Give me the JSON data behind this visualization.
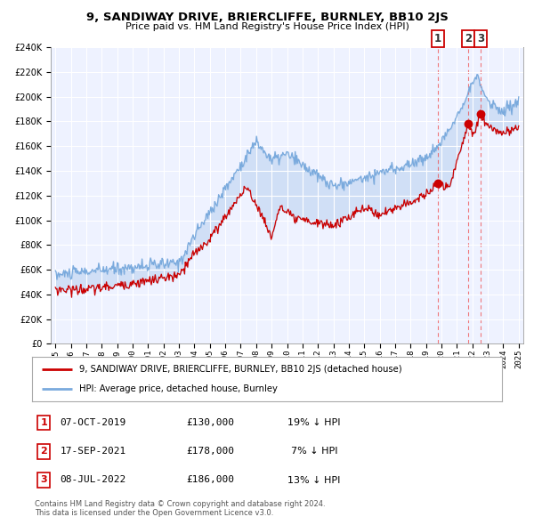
{
  "title": "9, SANDIWAY DRIVE, BRIERCLIFFE, BURNLEY, BB10 2JS",
  "subtitle": "Price paid vs. HM Land Registry's House Price Index (HPI)",
  "legend_label_red": "9, SANDIWAY DRIVE, BRIERCLIFFE, BURNLEY, BB10 2JS (detached house)",
  "legend_label_blue": "HPI: Average price, detached house, Burnley",
  "transactions": [
    {
      "label": "1",
      "date": "07-OCT-2019",
      "date_num": 2019.77,
      "price": 130000,
      "pct": "19% ↓ HPI"
    },
    {
      "label": "2",
      "date": "17-SEP-2021",
      "date_num": 2021.71,
      "price": 178000,
      "pct": "7% ↓ HPI"
    },
    {
      "label": "3",
      "date": "08-JUL-2022",
      "date_num": 2022.52,
      "price": 186000,
      "pct": "13% ↓ HPI"
    }
  ],
  "footer": "Contains HM Land Registry data © Crown copyright and database right 2024.\nThis data is licensed under the Open Government Licence v3.0.",
  "red_color": "#cc0000",
  "blue_color": "#7aaadd",
  "blue_fill_color": "#ddeeff",
  "background_color": "#eef2ff",
  "ylim": [
    0,
    240000
  ],
  "yticks": [
    0,
    20000,
    40000,
    60000,
    80000,
    100000,
    120000,
    140000,
    160000,
    180000,
    200000,
    220000,
    240000
  ],
  "xlim_start": 1994.7,
  "xlim_end": 2025.3,
  "xticks": [
    1995,
    1996,
    1997,
    1998,
    1999,
    2000,
    2001,
    2002,
    2003,
    2004,
    2005,
    2006,
    2007,
    2008,
    2009,
    2010,
    2011,
    2012,
    2013,
    2014,
    2015,
    2016,
    2017,
    2018,
    2019,
    2020,
    2021,
    2022,
    2023,
    2024,
    2025
  ]
}
